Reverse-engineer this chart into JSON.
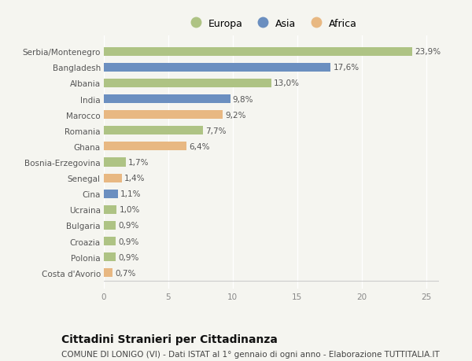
{
  "categories": [
    "Costa d'Avorio",
    "Polonia",
    "Croazia",
    "Bulgaria",
    "Ucraina",
    "Cina",
    "Senegal",
    "Bosnia-Erzegovina",
    "Ghana",
    "Romania",
    "Marocco",
    "India",
    "Albania",
    "Bangladesh",
    "Serbia/Montenegro"
  ],
  "values": [
    0.7,
    0.9,
    0.9,
    0.9,
    1.0,
    1.1,
    1.4,
    1.7,
    6.4,
    7.7,
    9.2,
    9.8,
    13.0,
    17.6,
    23.9
  ],
  "labels": [
    "0,7%",
    "0,9%",
    "0,9%",
    "0,9%",
    "1,0%",
    "1,1%",
    "1,4%",
    "1,7%",
    "6,4%",
    "7,7%",
    "9,2%",
    "9,8%",
    "13,0%",
    "17,6%",
    "23,9%"
  ],
  "colors": [
    "#e8b882",
    "#aec384",
    "#aec384",
    "#aec384",
    "#aec384",
    "#6b8fc0",
    "#e8b882",
    "#aec384",
    "#e8b882",
    "#aec384",
    "#e8b882",
    "#6b8fc0",
    "#aec384",
    "#6b8fc0",
    "#aec384"
  ],
  "legend_labels": [
    "Europa",
    "Asia",
    "Africa"
  ],
  "legend_colors": [
    "#aec384",
    "#6b8fc0",
    "#e8b882"
  ],
  "title": "Cittadini Stranieri per Cittadinanza",
  "subtitle": "COMUNE DI LONIGO (VI) - Dati ISTAT al 1° gennaio di ogni anno - Elaborazione TUTTITALIA.IT",
  "xlim": [
    0,
    26
  ],
  "xticks": [
    0,
    5,
    10,
    15,
    20,
    25
  ],
  "background_color": "#f5f5f0",
  "bar_alpha": 1.0,
  "title_fontsize": 10,
  "subtitle_fontsize": 7.5,
  "label_fontsize": 7.5,
  "tick_fontsize": 7.5,
  "legend_fontsize": 9
}
